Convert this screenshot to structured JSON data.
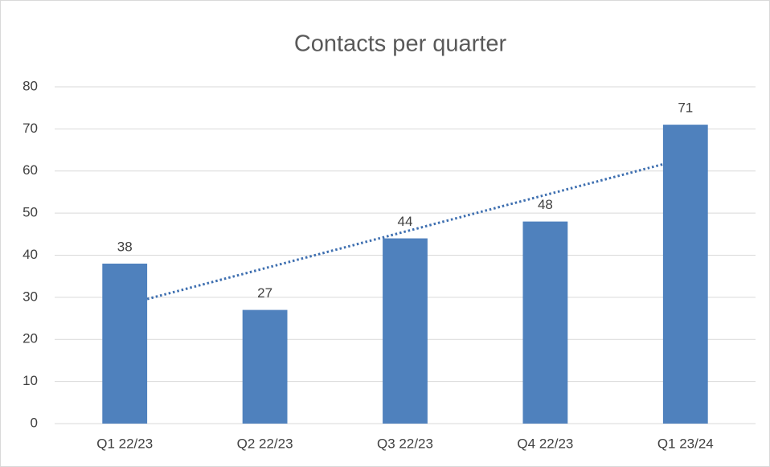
{
  "chart_data": {
    "type": "bar",
    "title": "Contacts per quarter",
    "categories": [
      "Q1 22/23",
      "Q2 22/23",
      "Q3 22/23",
      "Q4 22/23",
      "Q1 23/24"
    ],
    "values": [
      38,
      27,
      44,
      48,
      71
    ],
    "color": "#4f81bd",
    "ylim": [
      0,
      80
    ],
    "yticks": [
      0,
      10,
      20,
      30,
      40,
      50,
      60,
      70,
      80
    ],
    "grid": true,
    "data_labels": true,
    "trendline": "linear",
    "trendline_color": "#3e6fb0"
  }
}
